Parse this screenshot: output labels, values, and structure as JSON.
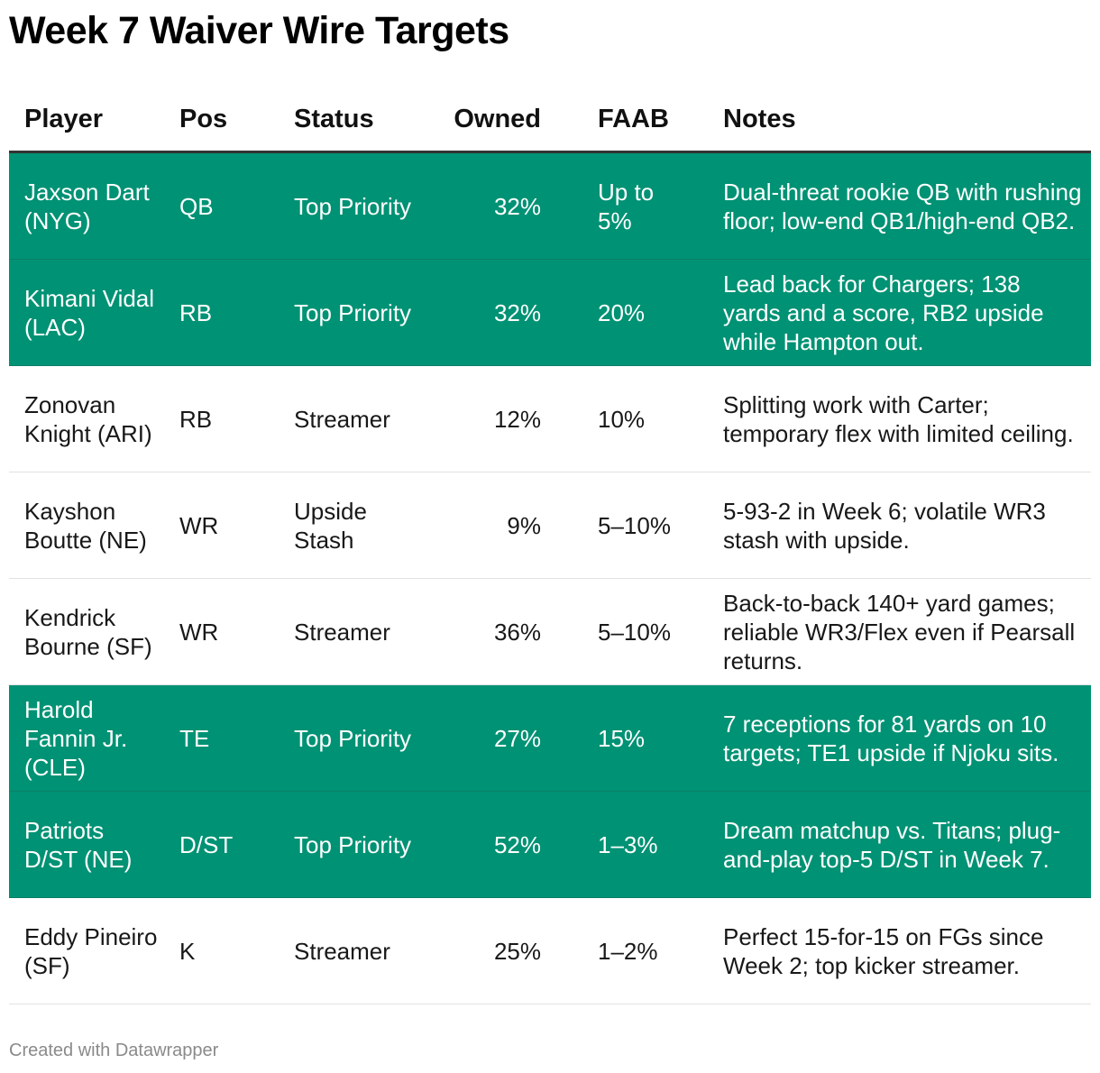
{
  "title": "Week 7 Waiver Wire Targets",
  "footer": "Created with Datawrapper",
  "colors": {
    "highlight": "#009274",
    "text": "#181818",
    "footer": "#8a8a8a"
  },
  "chart_data": {
    "type": "table",
    "columns": [
      "Player",
      "Pos",
      "Status",
      "Owned",
      "FAAB",
      "Notes"
    ],
    "rows": [
      {
        "player": "Jaxson Dart (NYG)",
        "pos": "QB",
        "status": "Top Priority",
        "owned": "32%",
        "faab": "Up to 5%",
        "notes": "Dual-threat rookie QB with rushing floor; low-end QB1/high-end QB2.",
        "highlight": true
      },
      {
        "player": "Kimani Vidal (LAC)",
        "pos": "RB",
        "status": "Top Priority",
        "owned": "32%",
        "faab": "20%",
        "notes": "Lead back for Chargers; 138 yards and a score, RB2 upside while Hampton out.",
        "highlight": true
      },
      {
        "player": "Zonovan Knight (ARI)",
        "pos": "RB",
        "status": "Streamer",
        "owned": "12%",
        "faab": "10%",
        "notes": "Splitting work with Carter; temporary flex with limited ceiling.",
        "highlight": false
      },
      {
        "player": "Kayshon Boutte (NE)",
        "pos": "WR",
        "status": "Upside Stash",
        "owned": "9%",
        "faab": "5–10%",
        "notes": "5-93-2 in Week 6; volatile WR3 stash with upside.",
        "highlight": false
      },
      {
        "player": "Kendrick Bourne (SF)",
        "pos": "WR",
        "status": "Streamer",
        "owned": "36%",
        "faab": "5–10%",
        "notes": "Back-to-back 140+ yard games; reliable WR3/Flex even if Pearsall returns.",
        "highlight": false
      },
      {
        "player": "Harold Fannin Jr. (CLE)",
        "pos": "TE",
        "status": "Top Priority",
        "owned": "27%",
        "faab": "15%",
        "notes": "7 receptions for 81 yards on 10 targets; TE1 upside if Njoku sits.",
        "highlight": true
      },
      {
        "player": "Patriots D/ST (NE)",
        "pos": "D/ST",
        "status": "Top Priority",
        "owned": "52%",
        "faab": "1–3%",
        "notes": "Dream matchup vs. Titans; plug-and-play top-5 D/ST in Week 7.",
        "highlight": true
      },
      {
        "player": "Eddy Pineiro (SF)",
        "pos": "K",
        "status": "Streamer",
        "owned": "25%",
        "faab": "1–2%",
        "notes": "Perfect 15-for-15 on FGs since Week 2; top kicker streamer.",
        "highlight": false
      }
    ]
  }
}
